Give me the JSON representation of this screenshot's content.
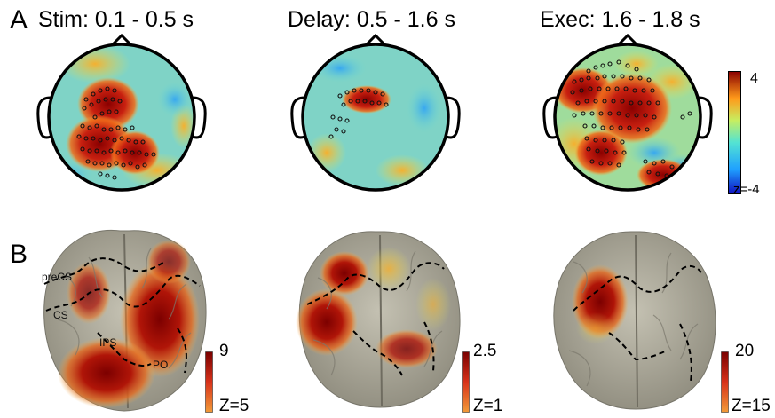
{
  "panel_a": {
    "letter": "A",
    "titles": [
      "Stim: 0.1 - 0.5 s",
      "Delay: 0.5 - 1.6 s",
      "Exec: 1.6 - 1.8 s"
    ],
    "colorbar": {
      "max": "4",
      "min": "z=-4"
    },
    "colors": {
      "head_fill": "#7fd0c8",
      "outline": "#000000",
      "hot": "#a00000",
      "cool": "#2f6fe0"
    }
  },
  "panel_b": {
    "letter": "B",
    "colorbars": [
      {
        "max": "9",
        "min": "Z=5"
      },
      {
        "max": "2.5",
        "min": "Z=1"
      },
      {
        "max": "20",
        "min": "Z=15"
      }
    ],
    "anatomy_labels": [
      "preCS",
      "CS",
      "IPS",
      "PO"
    ],
    "colors": {
      "brain": "#a8a596",
      "hot": "#8a0000",
      "warm": "#e8a030"
    }
  }
}
